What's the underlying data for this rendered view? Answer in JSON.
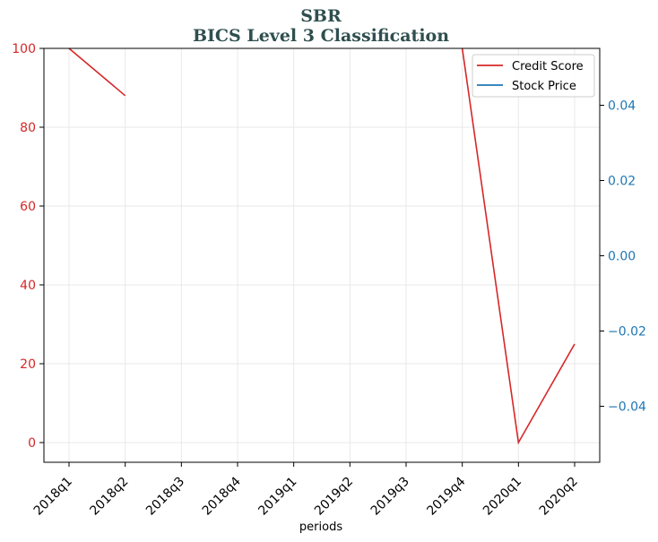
{
  "chart_data": {
    "type": "line",
    "title": "SBR",
    "subtitle": "BICS Level 3 Classification",
    "xlabel": "periods",
    "ylabel": "",
    "y2label": "",
    "categories": [
      "2018q1",
      "2018q2",
      "2018q3",
      "2018q4",
      "2019q1",
      "2019q2",
      "2019q3",
      "2019q4",
      "2020q1",
      "2020q2"
    ],
    "series": [
      {
        "name": "Credit Score",
        "axis": "left",
        "color": "#d62728",
        "values": [
          100,
          88,
          null,
          null,
          null,
          null,
          null,
          100,
          0,
          25
        ]
      },
      {
        "name": "Stock Price",
        "axis": "right",
        "color": "#1f77b4",
        "values": [
          null,
          null,
          null,
          null,
          null,
          null,
          null,
          null,
          null,
          null
        ]
      }
    ],
    "ylim": [
      -5,
      100
    ],
    "yticks": [
      0,
      20,
      40,
      60,
      80,
      100
    ],
    "y2lim": [
      -0.055,
      0.055
    ],
    "y2ticks": [
      -0.04,
      -0.02,
      0.0,
      0.02,
      0.04
    ],
    "y2tick_labels": [
      "−0.04",
      "−0.02",
      "0.00",
      "0.02",
      "0.04"
    ],
    "left_axis_color": "#d62728",
    "right_axis_color": "#1f77b4",
    "grid": true,
    "legend_position": "top-right"
  }
}
